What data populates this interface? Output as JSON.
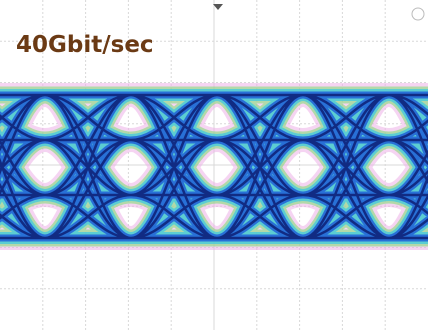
{
  "label": "40Gbit/sec"
}
